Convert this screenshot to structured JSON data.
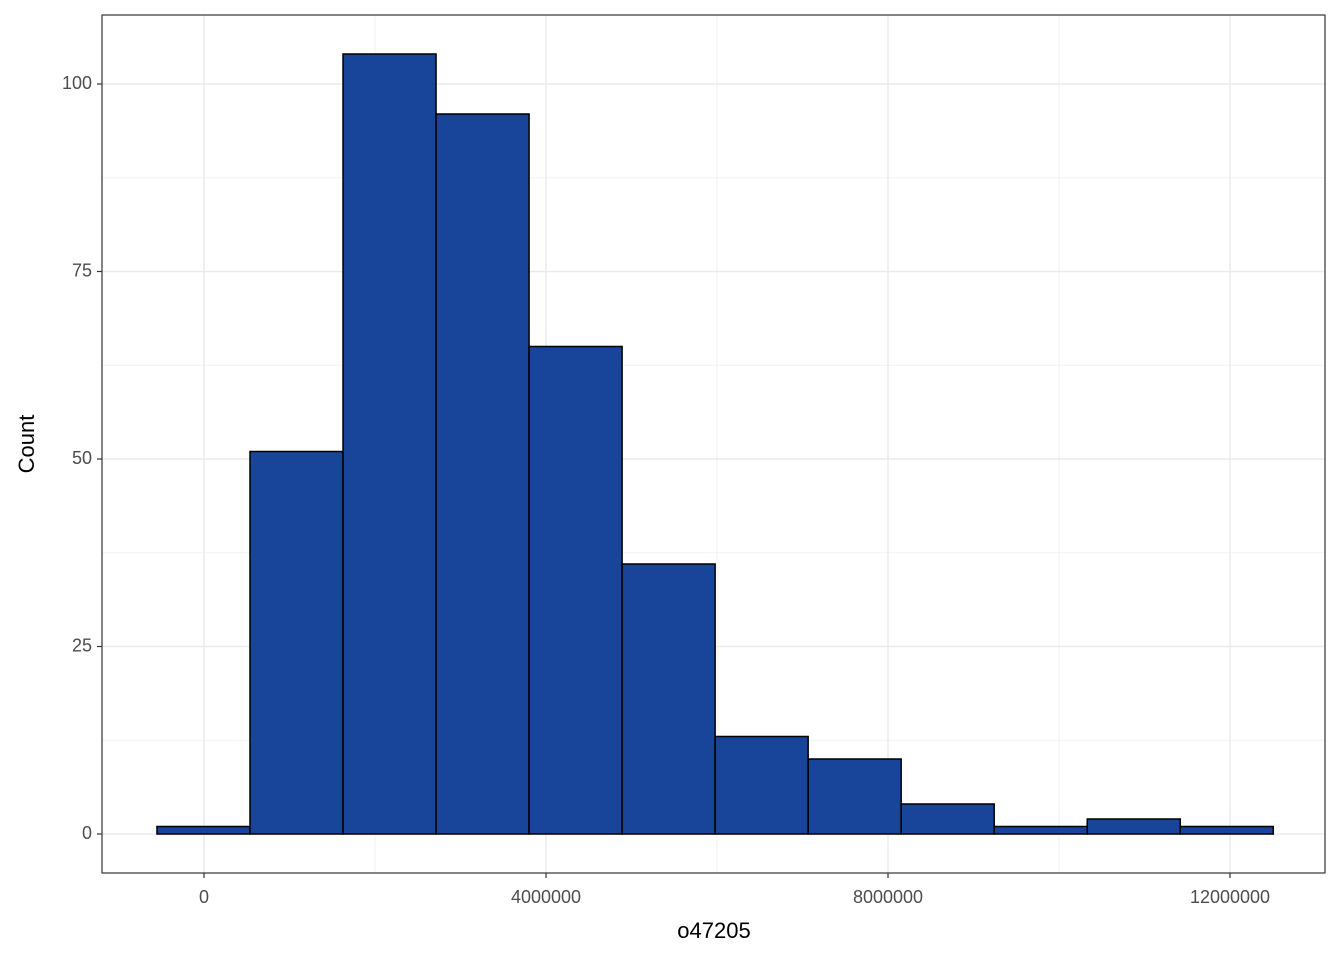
{
  "chart_data": {
    "type": "histogram",
    "x_label": "o47205",
    "y_label": "Count",
    "bins": [
      -550000,
      538000,
      1626000,
      2714000,
      3802000,
      4890000,
      5978000,
      7066000,
      8154000,
      9242000,
      10330000,
      11418000,
      12506000
    ],
    "values": [
      1,
      51,
      104,
      96,
      65,
      36,
      13,
      10,
      4,
      1,
      2,
      1
    ],
    "color": "#18449a",
    "edge_color": "#000000",
    "xlim": [
      -1193000,
      13111000
    ],
    "ylim": [
      -5.2,
      109.2
    ],
    "xticks": [
      0,
      4000000,
      8000000,
      12000000
    ],
    "yticks": [
      0,
      25,
      50,
      75,
      100
    ],
    "x_minor_grid": [
      2000000,
      6000000,
      10000000
    ],
    "y_minor_grid": [
      12.5,
      37.5,
      62.5,
      87.5
    ],
    "grid": true
  }
}
